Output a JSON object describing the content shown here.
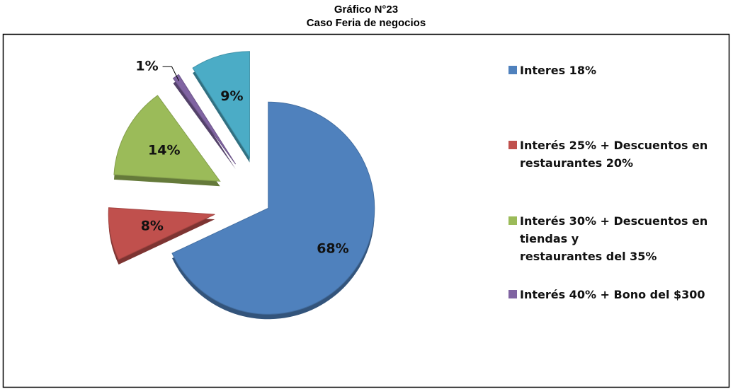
{
  "chart_data": {
    "type": "pie",
    "title": "Gráfico N°23",
    "subtitle": "Caso Feria de negocios",
    "categories": [
      "Interes 18%",
      "Interés 25% + Descuentos en\nrestaurantes 20%",
      "Interés 30% + Descuentos en\ntiendas y\n restaurantes del 35%",
      "Interés 40% + Bono del $300",
      null
    ],
    "values": [
      68,
      8,
      14,
      1,
      9
    ],
    "value_labels": [
      "68%",
      "8%",
      "14%",
      "1%",
      "9%"
    ],
    "colors": [
      "#4f81bd",
      "#c0504d",
      "#9bbb59",
      "#8064a2",
      "#4bacc6"
    ],
    "legend": "right"
  }
}
